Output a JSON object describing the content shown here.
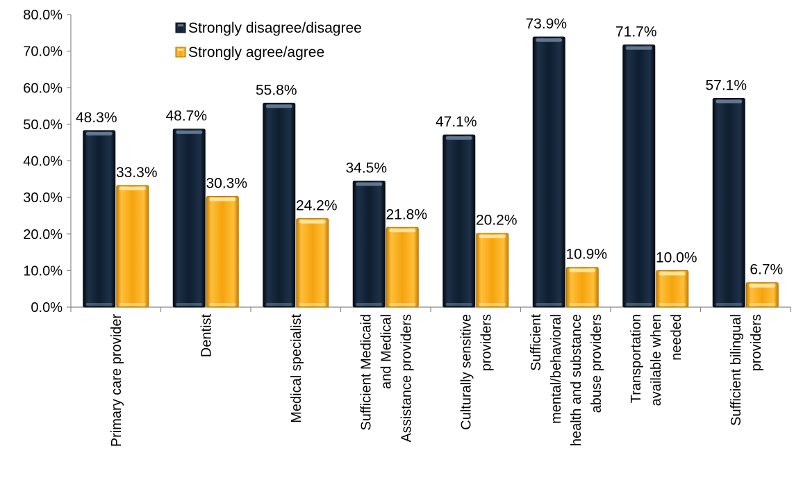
{
  "chart_data": {
    "type": "bar",
    "categories": [
      [
        "Primary care provider"
      ],
      [
        "Dentist"
      ],
      [
        "Medical specialist"
      ],
      [
        "Sufficient Medicaid",
        "and Medical",
        "Assistance providers"
      ],
      [
        "Culturally sensitive",
        "providers"
      ],
      [
        "Sufficient",
        "mental/behavioral",
        "health and substance",
        "abuse providers"
      ],
      [
        "Transportation",
        "available when",
        "needed"
      ],
      [
        "Sufficient bilingual",
        "providers"
      ]
    ],
    "series": [
      {
        "name": "Strongly disagree/disagree",
        "color": "#0f1e30",
        "values": [
          48.3,
          48.7,
          55.8,
          34.5,
          47.1,
          73.9,
          71.7,
          57.1
        ],
        "labels": [
          "48.3%",
          "48.7%",
          "55.8%",
          "34.5%",
          "47.1%",
          "73.9%",
          "71.7%",
          "57.1%"
        ]
      },
      {
        "name": "Strongly agree/agree",
        "color": "#f5a40c",
        "values": [
          33.3,
          30.3,
          24.2,
          21.8,
          20.2,
          10.9,
          10.0,
          6.7
        ],
        "labels": [
          "33.3%",
          "30.3%",
          "24.2%",
          "21.8%",
          "20.2%",
          "10.9%",
          "10.0%",
          "6.7%"
        ]
      }
    ],
    "yticks": [
      "0.0%",
      "10.0%",
      "20.0%",
      "30.0%",
      "40.0%",
      "50.0%",
      "60.0%",
      "70.0%",
      "80.0%"
    ],
    "ylim": [
      0,
      80
    ],
    "legend_position": "top-left",
    "grid": false
  }
}
